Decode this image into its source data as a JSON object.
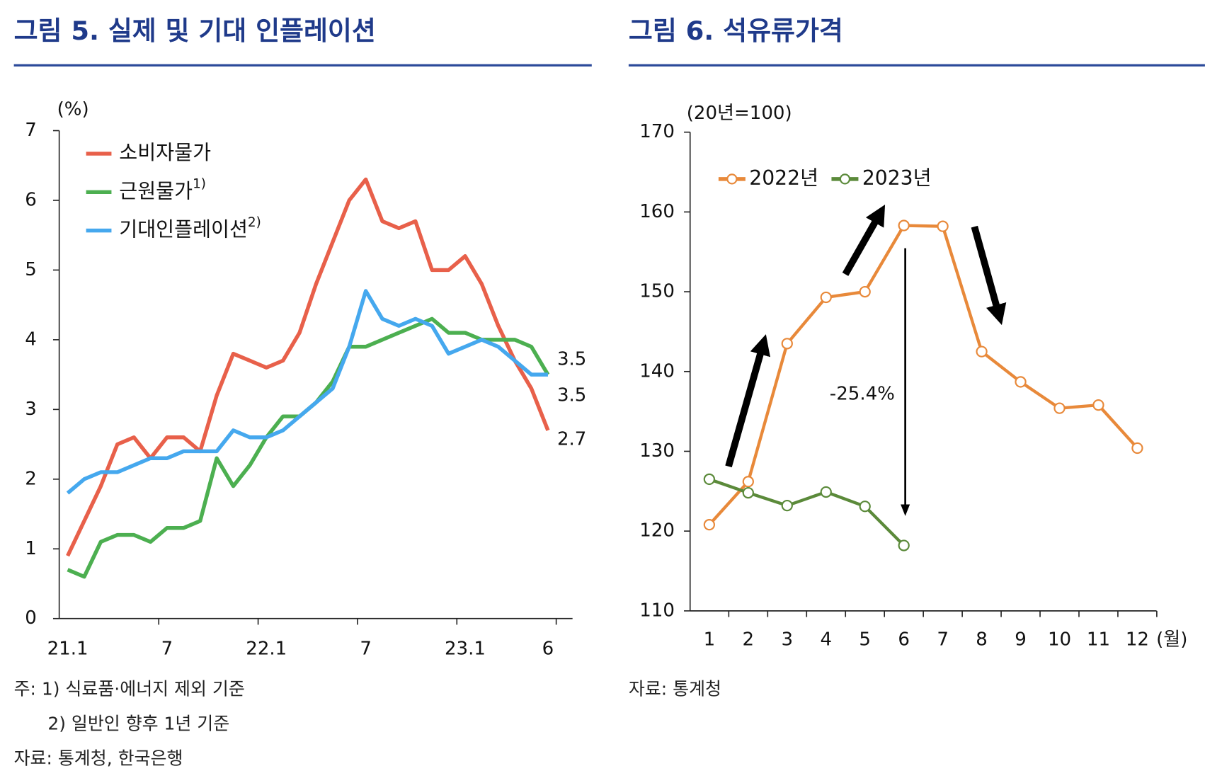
{
  "chart_data": [
    {
      "type": "line",
      "title": "그림 5. 실제 및 기대 인플레이션",
      "y_unit": "(%)",
      "categories": [
        "21.1",
        null,
        null,
        null,
        null,
        null,
        "7",
        null,
        null,
        null,
        null,
        null,
        "22.1",
        null,
        null,
        null,
        null,
        null,
        "7",
        null,
        null,
        null,
        null,
        null,
        "23.1",
        null,
        null,
        null,
        null,
        "6"
      ],
      "ylim": [
        0,
        7
      ],
      "yticks": [
        0,
        1,
        2,
        3,
        4,
        5,
        6,
        7
      ],
      "markers": false,
      "end_labels": true,
      "series": [
        {
          "name": "소비자물가",
          "color": "#e8604a",
          "label_color": "#e0402e",
          "values": [
            0.9,
            1.4,
            1.9,
            2.5,
            2.6,
            2.3,
            2.6,
            2.6,
            2.4,
            3.2,
            3.8,
            3.7,
            3.6,
            3.7,
            4.1,
            4.8,
            5.4,
            6.0,
            6.3,
            5.7,
            5.6,
            5.7,
            5.0,
            5.0,
            5.2,
            4.8,
            4.2,
            3.7,
            3.3,
            2.7
          ]
        },
        {
          "name": "근원물가",
          "note": "1)",
          "color": "#4caf50",
          "label_color": "#3a9a7a",
          "values": [
            0.7,
            0.6,
            1.1,
            1.2,
            1.2,
            1.1,
            1.3,
            1.3,
            1.4,
            2.3,
            1.9,
            2.2,
            2.6,
            2.9,
            2.9,
            3.1,
            3.4,
            3.9,
            3.9,
            4.0,
            4.1,
            4.2,
            4.3,
            4.1,
            4.1,
            4.0,
            4.0,
            4.0,
            3.9,
            3.5
          ]
        },
        {
          "name": "기대인플레이션",
          "note": "2)",
          "color": "#45a8ee",
          "label_color": "#45a8ee",
          "values": [
            1.8,
            2.0,
            2.1,
            2.1,
            2.2,
            2.3,
            2.3,
            2.4,
            2.4,
            2.4,
            2.7,
            2.6,
            2.6,
            2.7,
            2.9,
            3.1,
            3.3,
            3.9,
            4.7,
            4.3,
            4.2,
            4.3,
            4.2,
            3.8,
            3.9,
            4.0,
            3.9,
            3.7,
            3.5,
            3.5
          ]
        }
      ],
      "notes": [
        "주: 1) 식료품·에너지 제외 기준",
        "2) 일반인 향후 1년 기준",
        "자료: 통계청, 한국은행"
      ]
    },
    {
      "type": "line",
      "title": "그림 6. 석유류가격",
      "y_unit": "(20년=100)",
      "x_unit": "(월)",
      "categories": [
        "1",
        "2",
        "3",
        "4",
        "5",
        "6",
        "7",
        "8",
        "9",
        "10",
        "11",
        "12"
      ],
      "ylim": [
        110,
        170
      ],
      "yticks": [
        110,
        120,
        130,
        140,
        150,
        160,
        170
      ],
      "markers": true,
      "end_labels": false,
      "series": [
        {
          "name": "2022년",
          "color": "#e8893a",
          "values": [
            120.8,
            126.2,
            143.5,
            149.3,
            150.0,
            158.3,
            158.2,
            142.5,
            138.7,
            135.4,
            135.8,
            130.4
          ]
        },
        {
          "name": "2023년",
          "color": "#5b8a3a",
          "values": [
            126.5,
            124.8,
            123.2,
            124.9,
            123.1,
            118.2,
            null,
            null,
            null,
            null,
            null,
            null
          ]
        }
      ],
      "annotation": "-25.4%",
      "notes": [
        "자료: 통계청"
      ]
    }
  ]
}
